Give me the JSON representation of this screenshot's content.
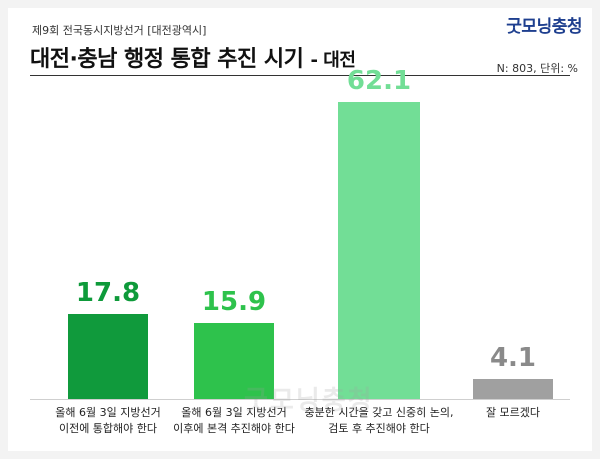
{
  "header": {
    "subtitle": "제9회 전국동시지방선거 [대전광역시]",
    "title_main": "대전·충남 행정 통합 추진 시기",
    "title_region": "- 대전",
    "logo": "굿모닝충청",
    "meta": "N: 803, 단위: %"
  },
  "watermark": "굿모닝충청",
  "colors": {
    "bars": [
      "#109a3c",
      "#2ec24c",
      "#72de96",
      "#a0a0a0"
    ],
    "labels": [
      "#0e9a3a",
      "#2ec24c",
      "#72de96",
      "#8a8a8a"
    ]
  },
  "chart_data": {
    "type": "bar",
    "title": "대전·충남 행정 통합 추진 시기",
    "categories": [
      [
        "올해 6월 3일 지방선거",
        "이전에 통합해야 한다"
      ],
      [
        "올해 6월 3일 지방선거",
        "이후에 본격 추진해야 한다"
      ],
      [
        "충분한 시간을 갖고 신중히 논의,",
        "검토 후 추진해야 한다"
      ],
      [
        "잘 모르겠다"
      ]
    ],
    "values": [
      17.8,
      15.9,
      62.1,
      4.1
    ],
    "value_labels": [
      "17.8",
      "15.9",
      "62.1",
      "4.1"
    ],
    "unit": "%",
    "ylim": [
      0,
      65
    ]
  }
}
